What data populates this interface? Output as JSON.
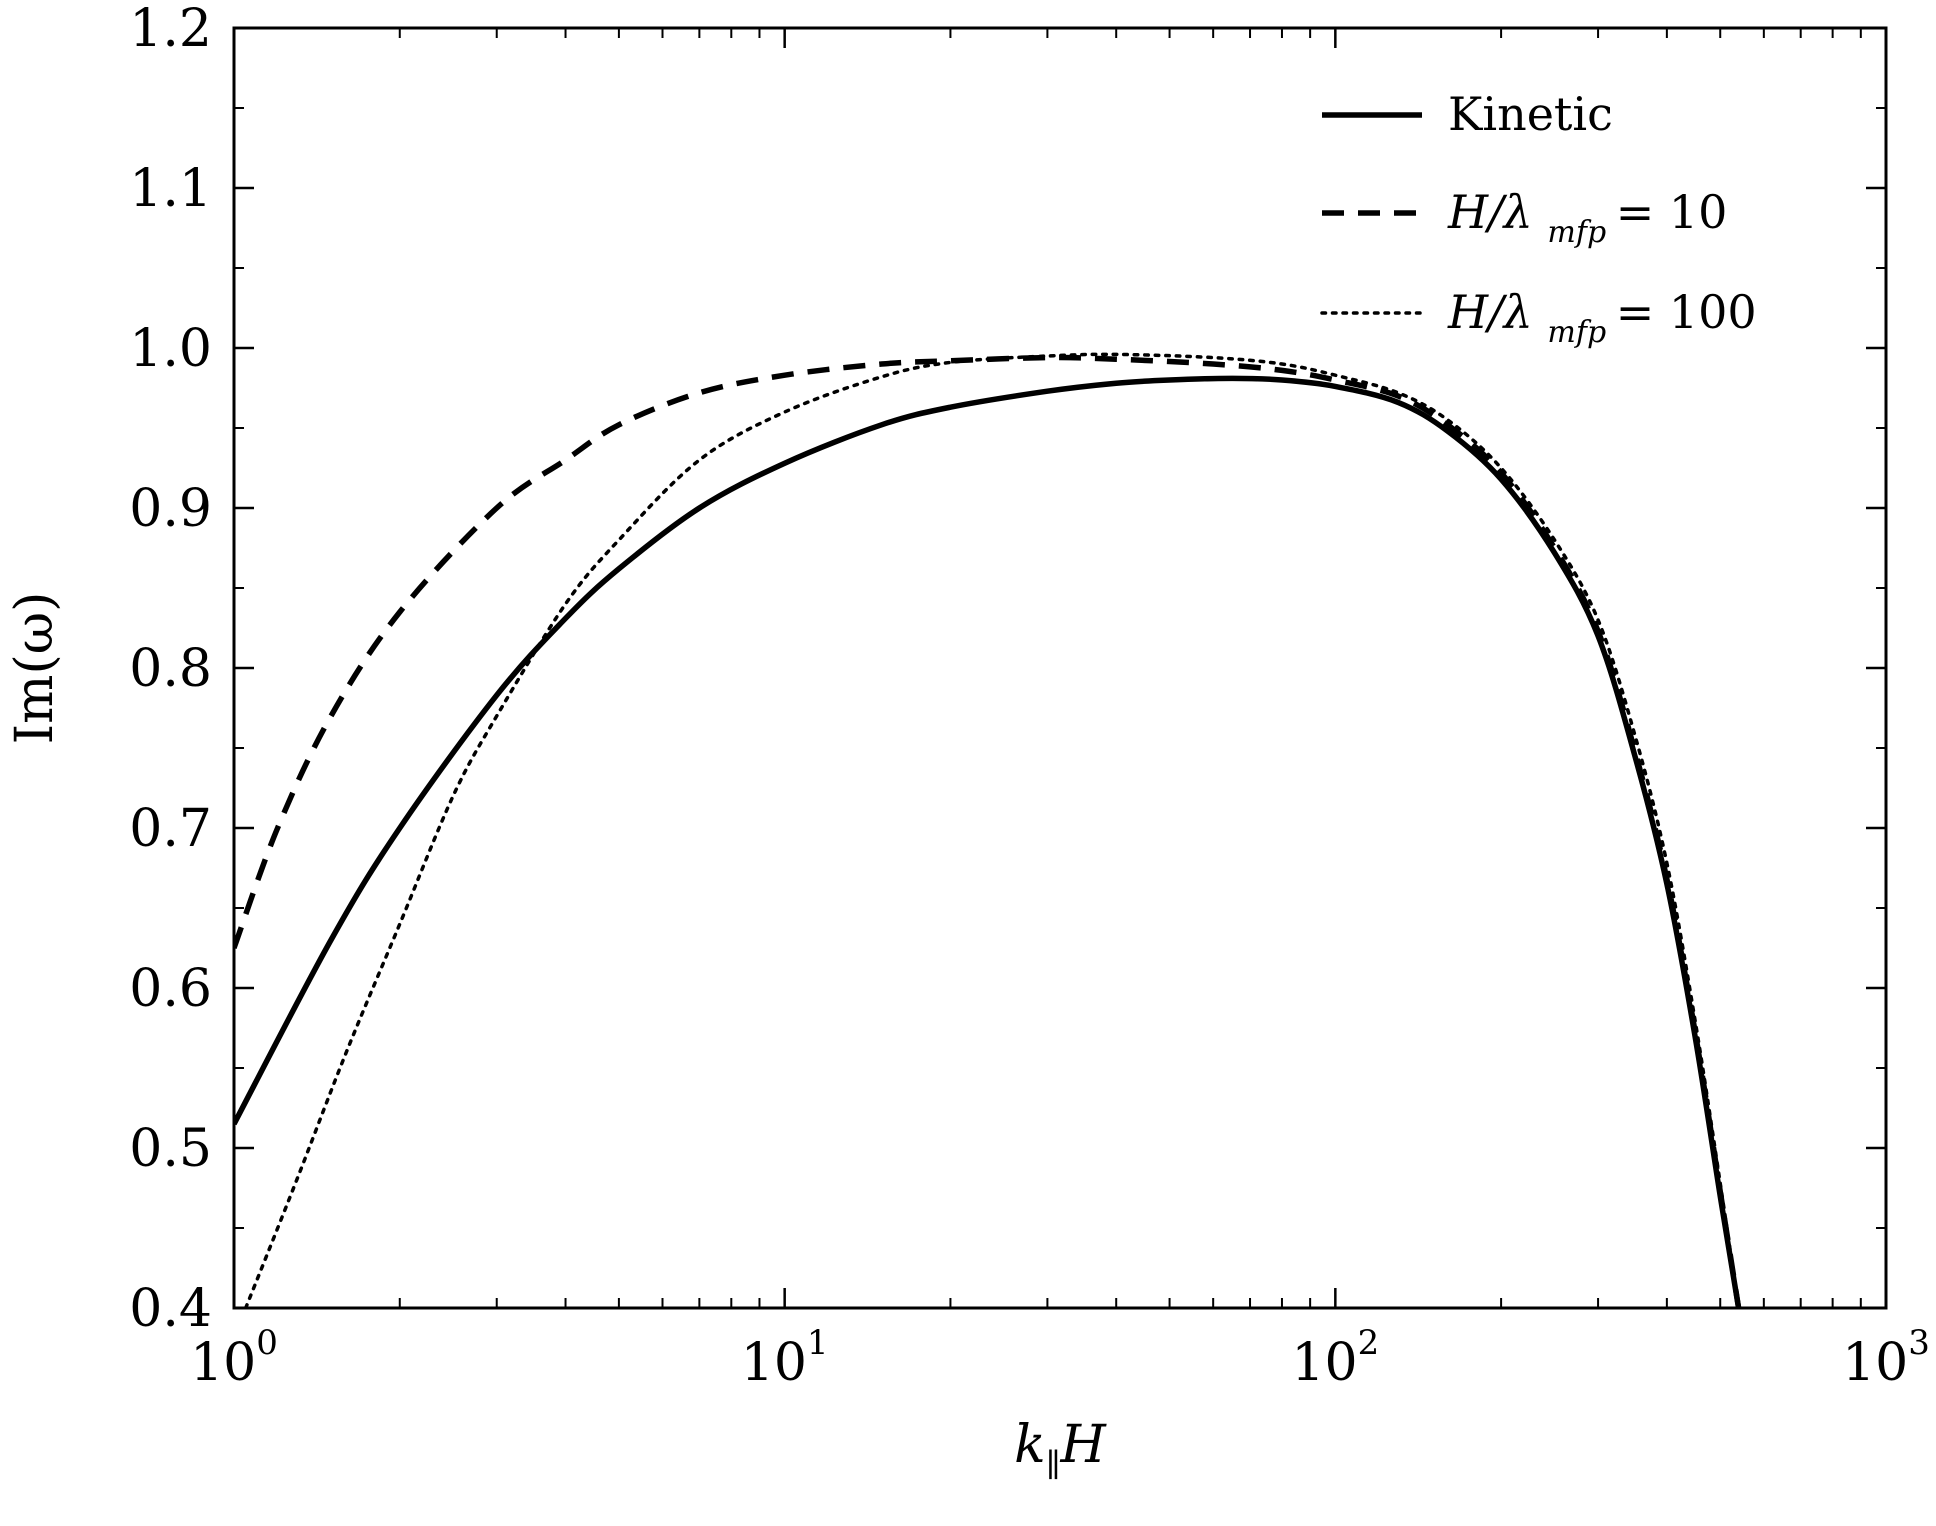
{
  "chart_data": {
    "type": "line",
    "xscale": "log",
    "xlim": [
      1,
      1000
    ],
    "ylim": [
      0.4,
      1.2
    ],
    "xlabel": {
      "main": "k",
      "sub": "∥",
      "tail": "H"
    },
    "ylabel": "Im(ω)",
    "grid": false,
    "legend_position": "top-right",
    "xticks": [
      {
        "value": 1,
        "base": "10",
        "exp": "0"
      },
      {
        "value": 10,
        "base": "10",
        "exp": "1"
      },
      {
        "value": 100,
        "base": "10",
        "exp": "2"
      },
      {
        "value": 1000,
        "base": "10",
        "exp": "3"
      }
    ],
    "yticks": [
      "0.4",
      "0.5",
      "0.6",
      "0.7",
      "0.8",
      "0.9",
      "1.0",
      "1.1",
      "1.2"
    ],
    "series": [
      {
        "name": "Kinetic",
        "style": "solid",
        "color": "#000000",
        "points": [
          [
            1,
            0.515
          ],
          [
            1.5,
            0.63
          ],
          [
            2,
            0.7
          ],
          [
            3,
            0.783
          ],
          [
            4,
            0.831
          ],
          [
            5,
            0.862
          ],
          [
            7,
            0.9
          ],
          [
            10,
            0.928
          ],
          [
            15,
            0.952
          ],
          [
            20,
            0.963
          ],
          [
            30,
            0.973
          ],
          [
            40,
            0.978
          ],
          [
            50,
            0.98
          ],
          [
            65,
            0.981
          ],
          [
            80,
            0.98
          ],
          [
            100,
            0.976
          ],
          [
            130,
            0.966
          ],
          [
            160,
            0.948
          ],
          [
            200,
            0.918
          ],
          [
            250,
            0.872
          ],
          [
            300,
            0.82
          ],
          [
            350,
            0.745
          ],
          [
            400,
            0.665
          ],
          [
            450,
            0.57
          ],
          [
            500,
            0.47
          ],
          [
            540,
            0.4
          ]
        ]
      },
      {
        "name": "H/λ mfp = 10",
        "legend": {
          "lhs_main": "H/λ",
          "lhs_sub": "mfp",
          "rhs": "= 10"
        },
        "style": "dashed",
        "color": "#000000",
        "points": [
          [
            1,
            0.625
          ],
          [
            1.2,
            0.7
          ],
          [
            1.5,
            0.77
          ],
          [
            2,
            0.835
          ],
          [
            3,
            0.9
          ],
          [
            4,
            0.93
          ],
          [
            5,
            0.952
          ],
          [
            7,
            0.972
          ],
          [
            10,
            0.983
          ],
          [
            15,
            0.99
          ],
          [
            20,
            0.992
          ],
          [
            30,
            0.994
          ],
          [
            40,
            0.993
          ],
          [
            60,
            0.99
          ],
          [
            80,
            0.986
          ],
          [
            100,
            0.98
          ],
          [
            130,
            0.97
          ],
          [
            160,
            0.952
          ],
          [
            200,
            0.922
          ],
          [
            250,
            0.875
          ],
          [
            300,
            0.823
          ],
          [
            350,
            0.748
          ],
          [
            400,
            0.668
          ],
          [
            450,
            0.573
          ],
          [
            500,
            0.473
          ],
          [
            540,
            0.4
          ]
        ]
      },
      {
        "name": "H/λ mfp = 100",
        "legend": {
          "lhs_main": "H/λ",
          "lhs_sub": "mfp",
          "rhs": "= 100"
        },
        "style": "dotted",
        "color": "#000000",
        "points": [
          [
            1.05,
            0.4
          ],
          [
            1.3,
            0.48
          ],
          [
            1.6,
            0.56
          ],
          [
            2,
            0.64
          ],
          [
            2.5,
            0.72
          ],
          [
            3,
            0.77
          ],
          [
            4,
            0.84
          ],
          [
            5,
            0.88
          ],
          [
            7,
            0.93
          ],
          [
            10,
            0.96
          ],
          [
            15,
            0.982
          ],
          [
            20,
            0.991
          ],
          [
            30,
            0.995
          ],
          [
            40,
            0.996
          ],
          [
            60,
            0.994
          ],
          [
            80,
            0.99
          ],
          [
            100,
            0.983
          ],
          [
            130,
            0.972
          ],
          [
            160,
            0.955
          ],
          [
            200,
            0.925
          ],
          [
            250,
            0.88
          ],
          [
            300,
            0.83
          ],
          [
            350,
            0.758
          ],
          [
            400,
            0.678
          ],
          [
            450,
            0.58
          ],
          [
            500,
            0.478
          ],
          [
            540,
            0.4
          ]
        ]
      }
    ]
  }
}
